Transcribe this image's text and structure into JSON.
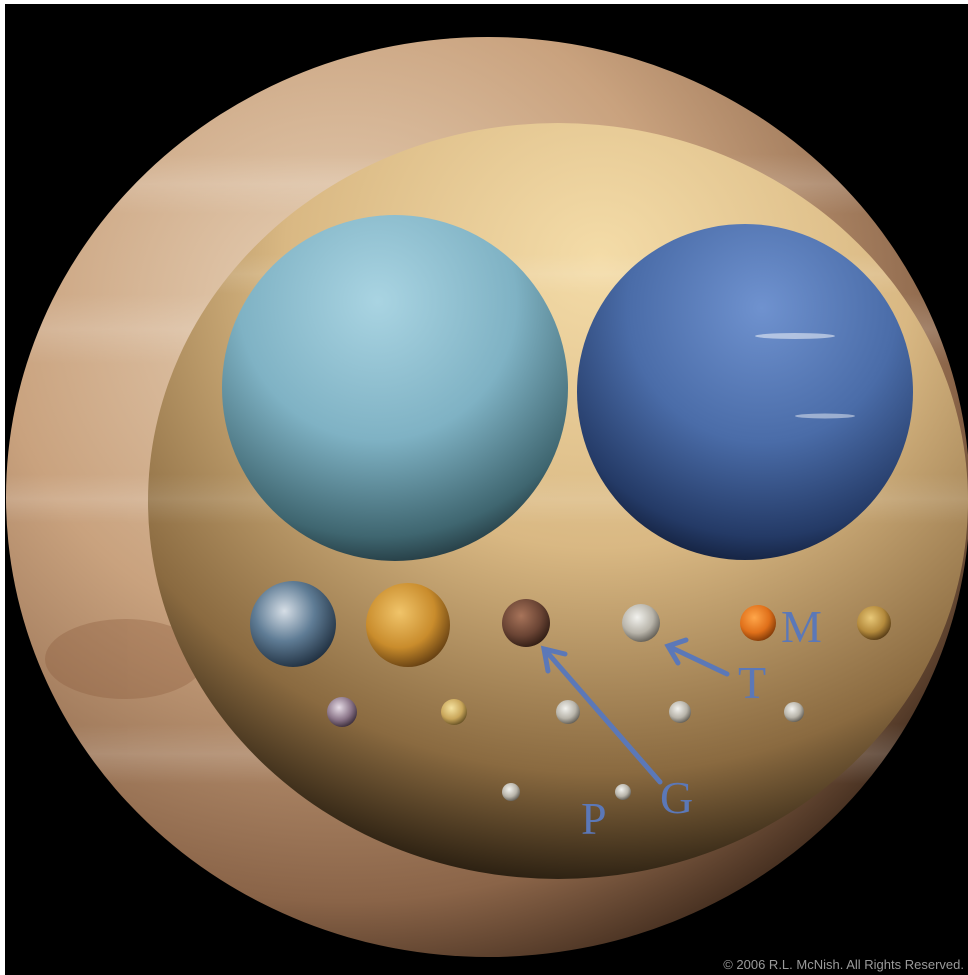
{
  "image": {
    "bodies": {
      "jupiter": "jupiter-planet",
      "saturn": "saturn-planet",
      "uranus": "uranus-planet",
      "neptune": "neptune-planet",
      "earth": "earth-planet",
      "venus": "venus-planet",
      "mars": "mars-planet",
      "mercury": "mercury-planet",
      "titan": "titan-moon",
      "ganymede": "ganymede-moon",
      "callisto": "callisto-moon",
      "io": "io-moon",
      "moon": "earths-moon",
      "europa": "europa-moon",
      "triton": "triton-moon",
      "pluto": "pluto-dwarf-planet"
    },
    "labels": {
      "m": "M",
      "t": "T",
      "g": "G",
      "p": "P"
    },
    "copyright": "© 2006 R.L. McNish. All Rights Reserved."
  },
  "colors": {
    "background": "#000000",
    "annotation": "#5b78b8",
    "copyright": "#9a9a9a",
    "jupiter": "#c9a27e",
    "saturn": "#d9b883",
    "uranus": "#7fb2c4",
    "neptune": "#4a6ca8"
  }
}
